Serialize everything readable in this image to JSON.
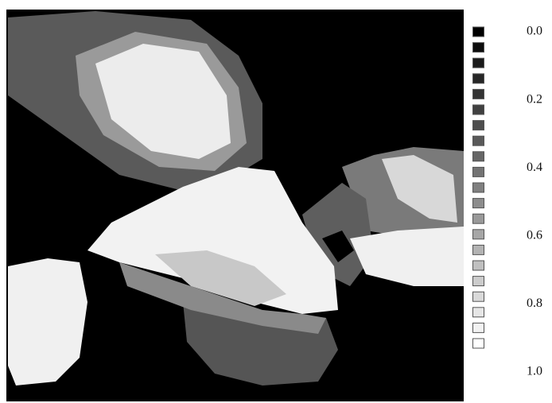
{
  "chart_data": {
    "type": "colorbar",
    "clim": [
      0,
      1
    ],
    "cticks": [
      {
        "value": 0,
        "label": "0.0"
      },
      {
        "value": 0.2,
        "label": "0.2"
      },
      {
        "value": 0.4,
        "label": "0.4"
      },
      {
        "value": 0.6,
        "label": "0.6"
      },
      {
        "value": 0.8,
        "label": "0.8"
      },
      {
        "value": 1,
        "label": "1.0"
      }
    ],
    "colors": [
      "#000000",
      "#ffffff"
    ]
  }
}
